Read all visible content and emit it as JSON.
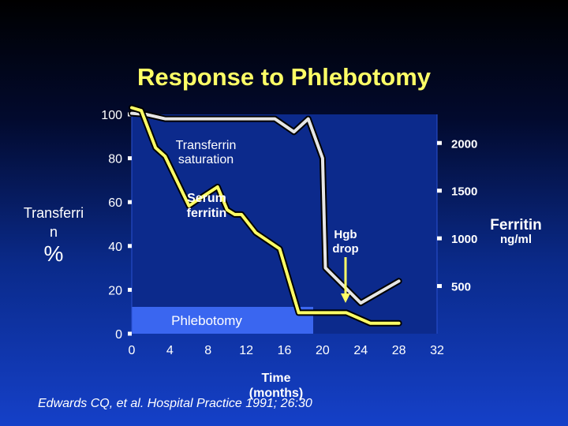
{
  "slide": {
    "title": "Response to Phlebotomy",
    "citation": "Edwards CQ, et al. Hospital Practice 1991; 26:30"
  },
  "chart_data": {
    "type": "line",
    "title": "Response to Phlebotomy",
    "xlabel": "Time (months)",
    "xticks": [
      0,
      4,
      8,
      12,
      16,
      20,
      24,
      28,
      32
    ],
    "xlim": [
      0,
      32
    ],
    "left_axis": {
      "label_lines": [
        "Transferri",
        "n",
        "%"
      ],
      "ticks": [
        100,
        80,
        60,
        40,
        20,
        0
      ],
      "ylim": [
        0,
        100
      ]
    },
    "right_axis": {
      "label_lines": [
        "Ferritin",
        "ng/ml"
      ],
      "ticks": [
        2000,
        1500,
        1000,
        500
      ],
      "ylim": [
        0,
        2300
      ]
    },
    "series": [
      {
        "name": "Transferrin saturation",
        "name_lines": [
          "Transferrin",
          "saturation"
        ],
        "axis": "left",
        "color": "#e6e6e6",
        "x": [
          0,
          1.5,
          3.5,
          4.3,
          6.5,
          9.5,
          12,
          15,
          17,
          18.5,
          20,
          20.3,
          24,
          28
        ],
        "y": [
          100.5,
          100,
          98,
          98,
          98,
          98,
          98,
          98,
          92,
          98,
          80,
          30,
          14,
          24
        ]
      },
      {
        "name": "Serum ferritin",
        "name_lines": [
          "Serum",
          "ferritin"
        ],
        "axis": "right",
        "color": "#ffff66",
        "x": [
          0,
          1,
          2.5,
          3.5,
          6,
          7,
          9,
          10,
          10.8,
          11.5,
          13,
          15.5,
          17.5,
          20,
          22.5,
          25,
          28
        ],
        "y": [
          2370,
          2340,
          1950,
          1860,
          1340,
          1410,
          1540,
          1300,
          1250,
          1250,
          1060,
          890,
          220,
          220,
          220,
          110,
          110
        ]
      }
    ],
    "annotations": [
      {
        "text_lines": [
          "Hgb",
          "drop"
        ],
        "arrow_x": 22.5
      },
      {
        "text": "Phlebotomy",
        "shaded_from_x": 0,
        "shaded_to_x": 20
      }
    ],
    "grid": false,
    "legend": "none"
  }
}
